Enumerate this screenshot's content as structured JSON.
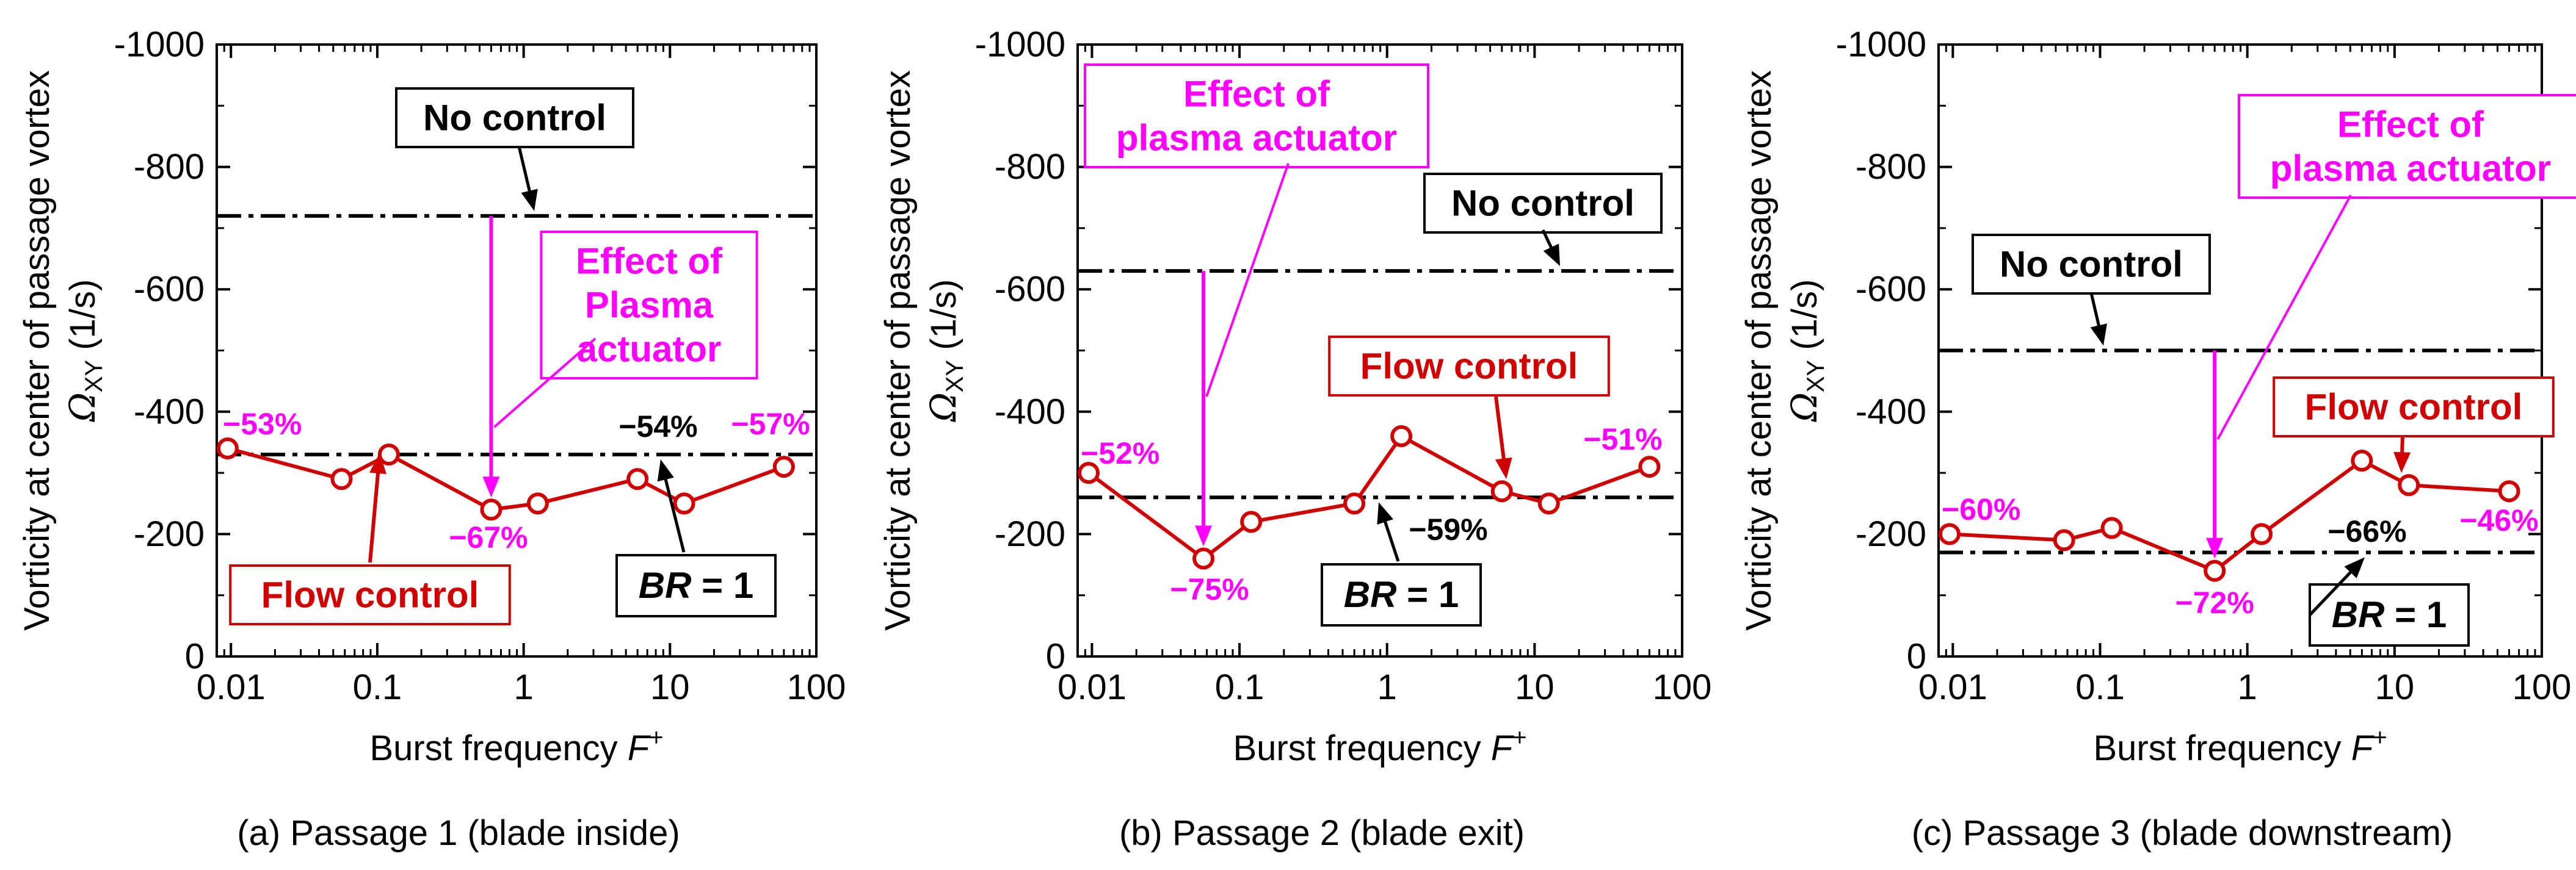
{
  "figure": {
    "shared": {
      "ylabel_line1": "Vorticity at center of passage vortex",
      "ylabel_symbol": "Ω",
      "ylabel_sub": "XY",
      "ylabel_unit": " (1/s)",
      "xlabel_text": "Burst frequency ",
      "xlabel_symbol": "F",
      "xlabel_sup": "+"
    },
    "colors": {
      "flow": "#d00000",
      "magenta": "#ff00ff",
      "black": "#000000"
    }
  },
  "chart_data": [
    {
      "type": "line",
      "caption": "(a) Passage 1 (blade inside)",
      "xscale": "log",
      "xlim": [
        0.008,
        100
      ],
      "ylim": [
        0,
        -1000
      ],
      "xticks": [
        0.01,
        0.1,
        1,
        10,
        100
      ],
      "xtick_labels": [
        "0.01",
        "0.1",
        "1",
        "10",
        "100"
      ],
      "yticks": [
        0,
        -200,
        -400,
        -600,
        -800,
        -1000
      ],
      "ytick_labels": [
        "0",
        "-200",
        "-400",
        "-600",
        "-800",
        "-1000"
      ],
      "series": [
        {
          "name": "Flow control",
          "x": [
            0.0095,
            0.057,
            0.12,
            0.6,
            1.25,
            6,
            12.5,
            60
          ],
          "y": [
            -340,
            -290,
            -330,
            -240,
            -250,
            -290,
            -250,
            -310
          ]
        }
      ],
      "no_control": -720,
      "br1": -330,
      "labels": {
        "no_control": "No control",
        "effect": [
          "Effect of",
          "Plasma",
          "actuator"
        ],
        "flow_control": "Flow control",
        "br_italic": "BR",
        "br_rest": " = 1",
        "pct": [
          "−53%",
          "−67%",
          "−57%"
        ],
        "pct_black": "−54%"
      }
    },
    {
      "type": "line",
      "caption": "(b) Passage 2 (blade exit)",
      "xscale": "log",
      "xlim": [
        0.008,
        100
      ],
      "ylim": [
        0,
        -1000
      ],
      "xticks": [
        0.01,
        0.1,
        1,
        10,
        100
      ],
      "xtick_labels": [
        "0.01",
        "0.1",
        "1",
        "10",
        "100"
      ],
      "yticks": [
        0,
        -200,
        -400,
        -600,
        -800,
        -1000
      ],
      "ytick_labels": [
        "0",
        "-200",
        "-400",
        "-600",
        "-800",
        "-1000"
      ],
      "series": [
        {
          "name": "Flow control",
          "x": [
            0.0095,
            0.057,
            0.12,
            0.6,
            1.25,
            6,
            12.5,
            60
          ],
          "y": [
            -300,
            -160,
            -220,
            -250,
            -360,
            -270,
            -250,
            -310
          ]
        }
      ],
      "no_control": -630,
      "br1": -260,
      "labels": {
        "no_control": "No control",
        "effect": [
          "Effect of",
          "plasma actuator"
        ],
        "flow_control": "Flow control",
        "br_italic": "BR",
        "br_rest": " = 1",
        "pct": [
          "−52%",
          "−75%",
          "−51%"
        ],
        "pct_black": "−59%"
      }
    },
    {
      "type": "line",
      "caption": "(c) Passage 3 (blade downstream)",
      "xscale": "log",
      "xlim": [
        0.008,
        100
      ],
      "ylim": [
        0,
        -1000
      ],
      "xticks": [
        0.01,
        0.1,
        1,
        10,
        100
      ],
      "xtick_labels": [
        "0.01",
        "0.1",
        "1",
        "10",
        "100"
      ],
      "yticks": [
        0,
        -200,
        -400,
        -600,
        -800,
        -1000
      ],
      "ytick_labels": [
        "0",
        "-200",
        "-400",
        "-600",
        "-800",
        "-1000"
      ],
      "series": [
        {
          "name": "Flow control",
          "x": [
            0.0095,
            0.057,
            0.12,
            0.6,
            1.25,
            6,
            12.5,
            60
          ],
          "y": [
            -200,
            -190,
            -210,
            -140,
            -200,
            -320,
            -280,
            -270
          ]
        }
      ],
      "no_control": -500,
      "br1": -170,
      "labels": {
        "no_control": "No control",
        "effect": [
          "Effect of",
          "plasma actuator"
        ],
        "flow_control": "Flow control",
        "br_italic": "BR",
        "br_rest": " = 1",
        "pct": [
          "−60%",
          "−72%",
          "−46%"
        ],
        "pct_black": "−66%"
      }
    }
  ]
}
